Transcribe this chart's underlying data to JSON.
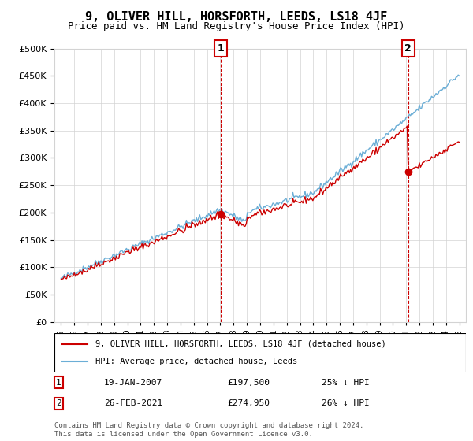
{
  "title": "9, OLIVER HILL, HORSFORTH, LEEDS, LS18 4JF",
  "subtitle": "Price paid vs. HM Land Registry's House Price Index (HPI)",
  "legend_line1": "9, OLIVER HILL, HORSFORTH, LEEDS, LS18 4JF (detached house)",
  "legend_line2": "HPI: Average price, detached house, Leeds",
  "annotation1_label": "1",
  "annotation1_date": "19-JAN-2007",
  "annotation1_price": "£197,500",
  "annotation1_hpi": "25% ↓ HPI",
  "annotation2_label": "2",
  "annotation2_date": "26-FEB-2021",
  "annotation2_price": "£274,950",
  "annotation2_hpi": "26% ↓ HPI",
  "footer": "Contains HM Land Registry data © Crown copyright and database right 2024.\nThis data is licensed under the Open Government Licence v3.0.",
  "hpi_color": "#6baed6",
  "price_color": "#cc0000",
  "ylim": [
    0,
    500000
  ],
  "yticks": [
    0,
    50000,
    100000,
    150000,
    200000,
    250000,
    300000,
    350000,
    400000,
    450000,
    500000
  ],
  "purchase1_year": 2007.05,
  "purchase1_price": 197500,
  "purchase2_year": 2021.15,
  "purchase2_price": 274950
}
